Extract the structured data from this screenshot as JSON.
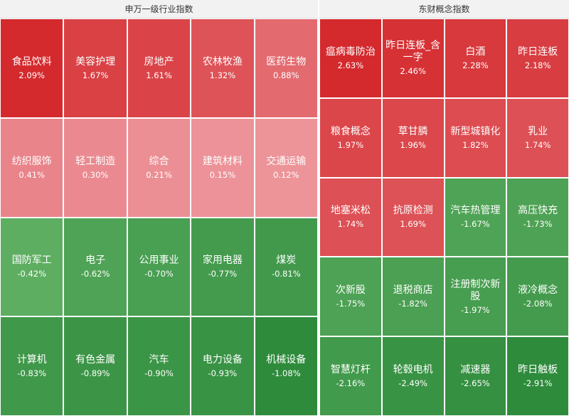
{
  "panels": {
    "left": {
      "title": "申万一级行业指数"
    },
    "right": {
      "title": "东财概念指数"
    }
  },
  "chart_data": [
    {
      "type": "heatmap",
      "title": "申万一级行业指数",
      "columns": 5,
      "items": [
        {
          "name": "食品饮料",
          "pct": "2.09%",
          "value": 2.09
        },
        {
          "name": "美容护理",
          "pct": "1.67%",
          "value": 1.67
        },
        {
          "name": "房地产",
          "pct": "1.61%",
          "value": 1.61
        },
        {
          "name": "农林牧渔",
          "pct": "1.32%",
          "value": 1.32
        },
        {
          "name": "医药生物",
          "pct": "0.88%",
          "value": 0.88
        },
        {
          "name": "纺织服饰",
          "pct": "0.41%",
          "value": 0.41
        },
        {
          "name": "轻工制造",
          "pct": "0.30%",
          "value": 0.3
        },
        {
          "name": "综合",
          "pct": "0.21%",
          "value": 0.21
        },
        {
          "name": "建筑材料",
          "pct": "0.15%",
          "value": 0.15
        },
        {
          "name": "交通运输",
          "pct": "0.12%",
          "value": 0.12
        },
        {
          "name": "国防军工",
          "pct": "-0.42%",
          "value": -0.42
        },
        {
          "name": "电子",
          "pct": "-0.62%",
          "value": -0.62
        },
        {
          "name": "公用事业",
          "pct": "-0.70%",
          "value": -0.7
        },
        {
          "name": "家用电器",
          "pct": "-0.77%",
          "value": -0.77
        },
        {
          "name": "煤炭",
          "pct": "-0.81%",
          "value": -0.81
        },
        {
          "name": "计算机",
          "pct": "-0.83%",
          "value": -0.83
        },
        {
          "name": "有色金属",
          "pct": "-0.89%",
          "value": -0.89
        },
        {
          "name": "汽车",
          "pct": "-0.90%",
          "value": -0.9
        },
        {
          "name": "电力设备",
          "pct": "-0.93%",
          "value": -0.93
        },
        {
          "name": "机械设备",
          "pct": "-1.08%",
          "value": -1.08
        }
      ]
    },
    {
      "type": "heatmap",
      "title": "东财概念指数",
      "columns": 4,
      "items": [
        {
          "name": "瘟病毒防治",
          "pct": "2.63%",
          "value": 2.63
        },
        {
          "name": "昨日连板_含一字",
          "pct": "2.46%",
          "value": 2.46
        },
        {
          "name": "白酒",
          "pct": "2.28%",
          "value": 2.28
        },
        {
          "name": "昨日连板",
          "pct": "2.18%",
          "value": 2.18
        },
        {
          "name": "粮食概念",
          "pct": "1.97%",
          "value": 1.97
        },
        {
          "name": "草甘膦",
          "pct": "1.96%",
          "value": 1.96
        },
        {
          "name": "新型城镇化",
          "pct": "1.82%",
          "value": 1.82
        },
        {
          "name": "乳业",
          "pct": "1.74%",
          "value": 1.74
        },
        {
          "name": "地塞米松",
          "pct": "1.74%",
          "value": 1.74
        },
        {
          "name": "抗原检测",
          "pct": "1.69%",
          "value": 1.69
        },
        {
          "name": "汽车热管理",
          "pct": "-1.67%",
          "value": -1.67
        },
        {
          "name": "高压快充",
          "pct": "-1.73%",
          "value": -1.73
        },
        {
          "name": "次新股",
          "pct": "-1.75%",
          "value": -1.75
        },
        {
          "name": "退税商店",
          "pct": "-1.82%",
          "value": -1.82
        },
        {
          "name": "注册制次新股",
          "pct": "-1.97%",
          "value": -1.97
        },
        {
          "name": "液冷概念",
          "pct": "-2.08%",
          "value": -2.08
        },
        {
          "name": "智慧灯杆",
          "pct": "-2.16%",
          "value": -2.16
        },
        {
          "name": "轮毂电机",
          "pct": "-2.49%",
          "value": -2.49
        },
        {
          "name": "减速器",
          "pct": "-2.65%",
          "value": -2.65
        },
        {
          "name": "昨日触板",
          "pct": "-2.91%",
          "value": -2.91
        }
      ]
    }
  ]
}
